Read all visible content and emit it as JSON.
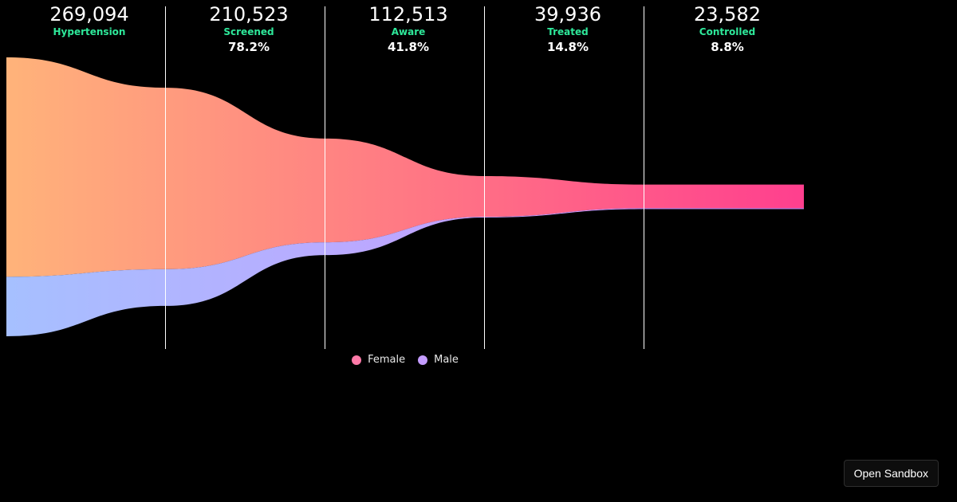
{
  "chart_data": {
    "type": "area",
    "subtype": "funnel",
    "stages": [
      {
        "label": "Hypertension",
        "value": "269,094",
        "percent": ""
      },
      {
        "label": "Screened",
        "value": "210,523",
        "percent": "78.2%"
      },
      {
        "label": "Aware",
        "value": "112,513",
        "percent": "41.8%"
      },
      {
        "label": "Treated",
        "value": "39,936",
        "percent": "14.8%"
      },
      {
        "label": "Controlled",
        "value": "23,582",
        "percent": "8.8%"
      }
    ],
    "series": [
      {
        "name": "Female",
        "values": [
          211700,
          175100,
          100200,
          39200,
          22700
        ]
      },
      {
        "name": "Male",
        "values": [
          57394,
          35423,
          12313,
          736,
          882
        ]
      }
    ],
    "legend": {
      "placement": "bottom-center"
    },
    "colors": {
      "female_start": "#ffb37a",
      "female_end": "#ff3f8e",
      "male_start": "#a6c0ff",
      "male_end": "#d48cff",
      "label_accent": "#2ee89a",
      "divider": "#ffffff",
      "legend_female": "#ff7aa8",
      "legend_male": "#c49cff"
    }
  },
  "sandbox": {
    "label": "Open Sandbox"
  }
}
